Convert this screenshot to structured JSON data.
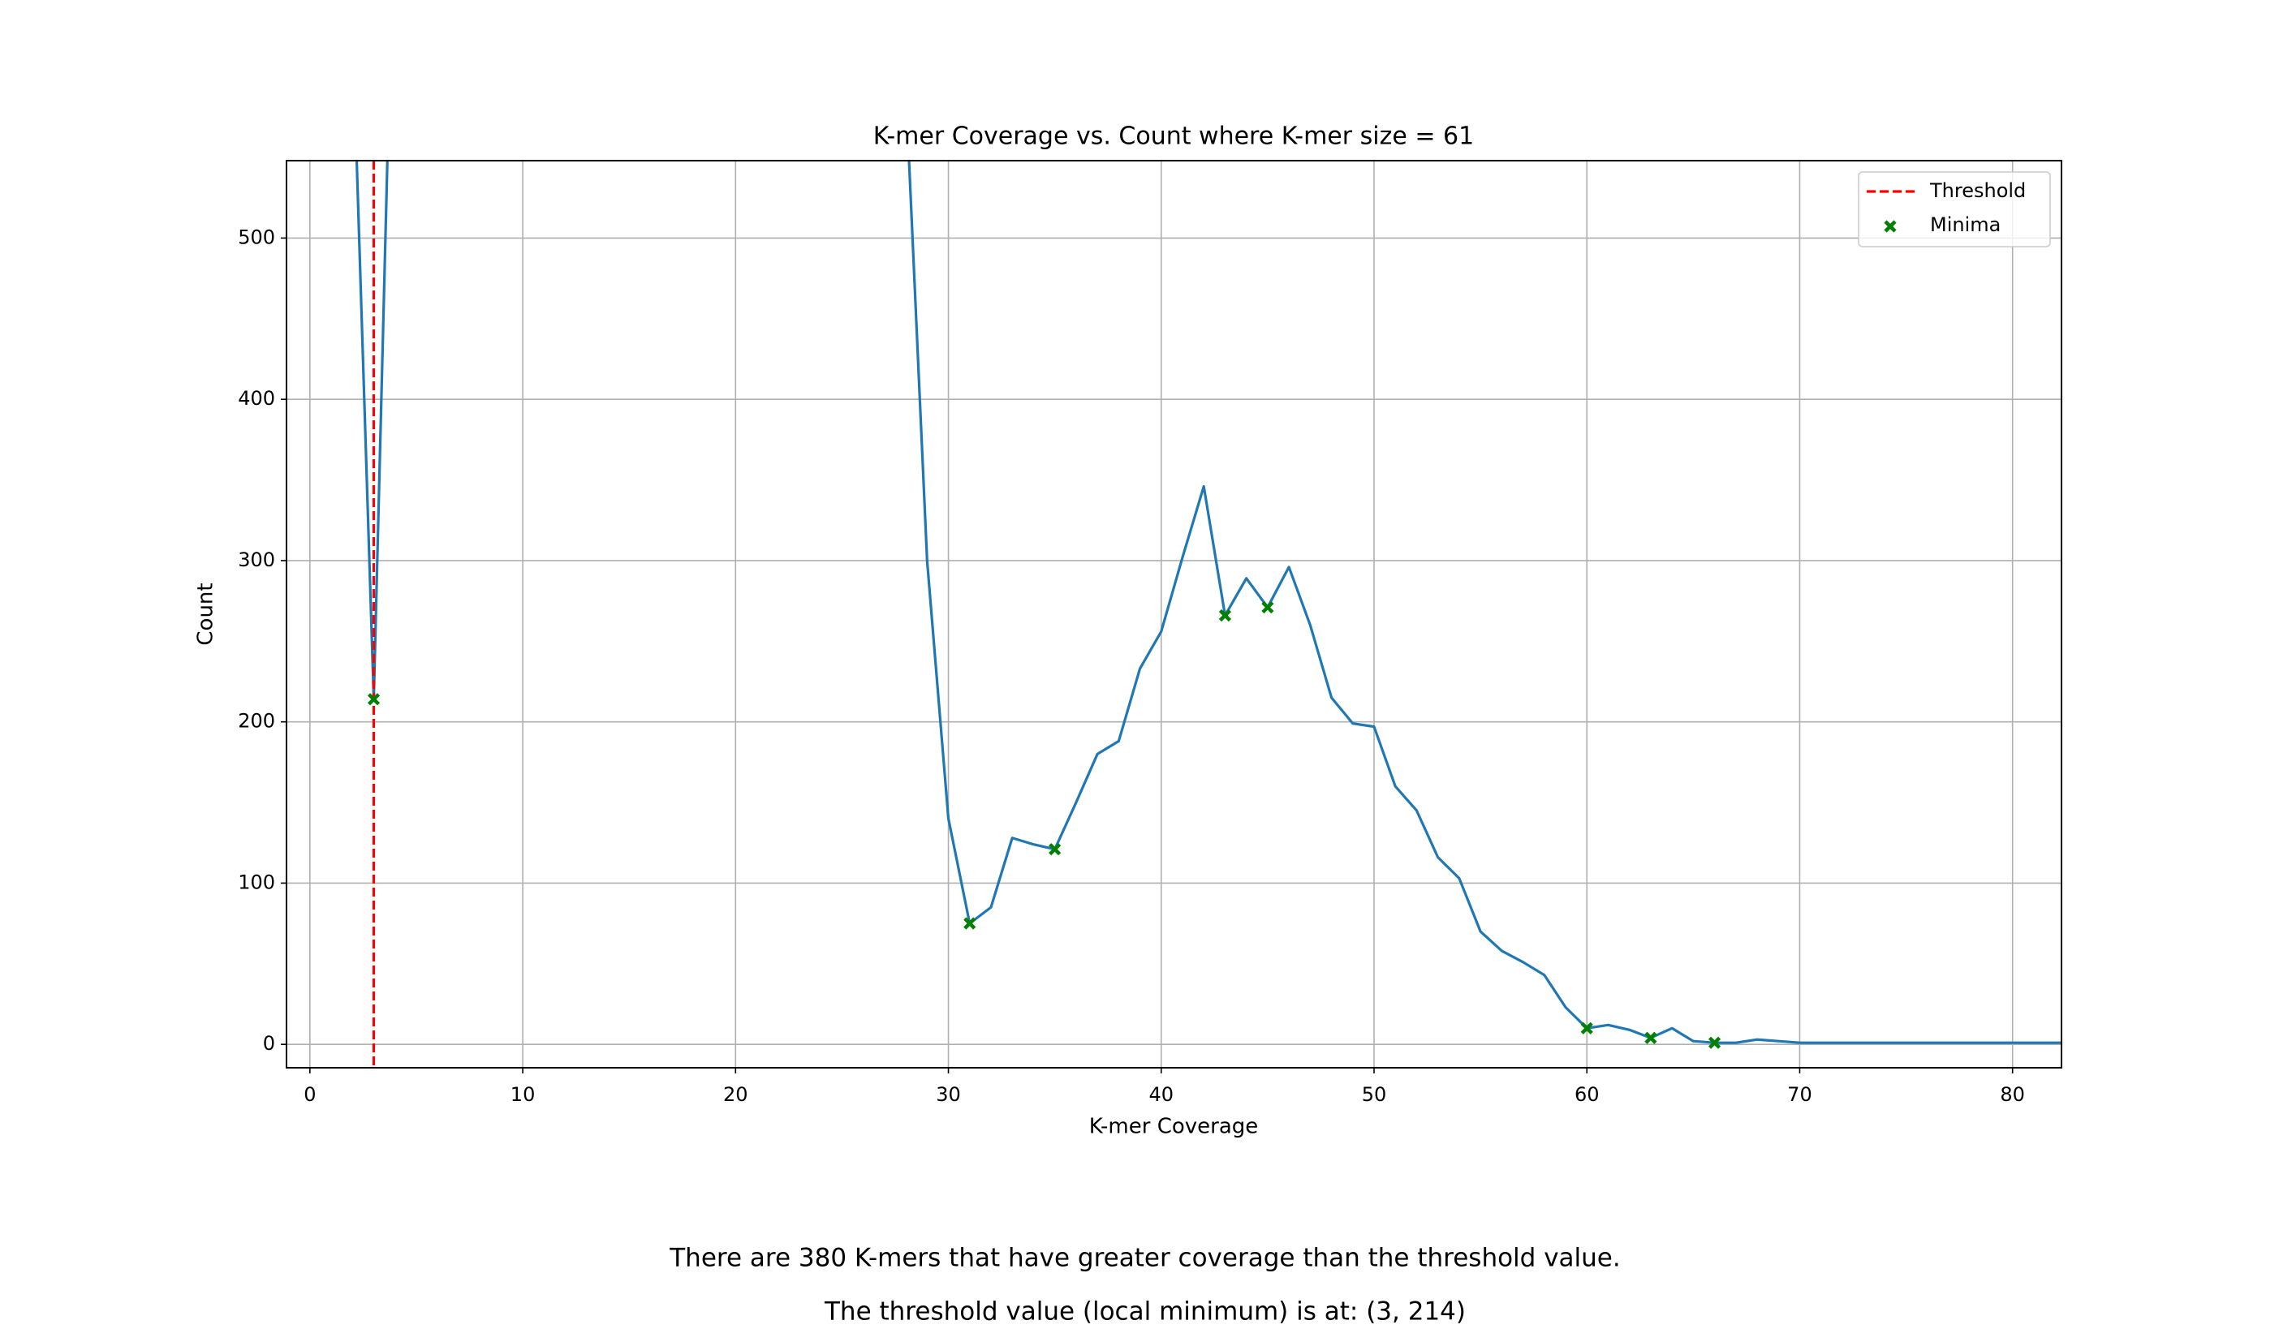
{
  "chart_data": {
    "type": "line",
    "title": "K-mer Coverage vs. Count where K-mer size = 61",
    "xlabel": "K-mer Coverage",
    "ylabel": "Count",
    "x": [
      2,
      3,
      4,
      5,
      6,
      7,
      8,
      9,
      10,
      11,
      12,
      13,
      14,
      15,
      16,
      17,
      18,
      19,
      20,
      21,
      22,
      23,
      24,
      25,
      26,
      27,
      28,
      29,
      30,
      31,
      32,
      33,
      34,
      35,
      36,
      37,
      38,
      39,
      40,
      41,
      42,
      43,
      44,
      45,
      46,
      47,
      48,
      49,
      50,
      51,
      52,
      53,
      54,
      55,
      56,
      57,
      58,
      59,
      60,
      61,
      62,
      63,
      64,
      65,
      66,
      67,
      68,
      69,
      70,
      71,
      72,
      73,
      74,
      75,
      76,
      77,
      78,
      79,
      80,
      81,
      82,
      83
    ],
    "series": [
      {
        "color": "#1f77b4",
        "values": [
          631,
          214,
          736,
          null,
          null,
          null,
          null,
          null,
          null,
          null,
          null,
          null,
          null,
          null,
          null,
          null,
          null,
          null,
          null,
          null,
          null,
          null,
          null,
          null,
          null,
          null,
          592,
          300,
          140,
          75,
          85,
          128,
          124,
          121,
          150,
          180,
          188,
          233,
          256,
          302,
          346,
          266,
          289,
          271,
          296,
          260,
          215,
          199,
          197,
          160,
          145,
          116,
          103,
          70,
          58,
          51,
          43,
          23,
          10,
          12,
          9,
          4,
          10,
          2,
          1,
          1,
          3,
          2,
          1,
          1,
          1,
          1,
          1,
          1,
          1,
          1,
          1,
          1,
          1,
          1,
          1,
          1
        ]
      }
    ],
    "threshold": {
      "name": "Threshold",
      "color": "#ff0000",
      "x": 3
    },
    "minima": {
      "name": "Minima",
      "color": "#008000",
      "x": [
        3,
        31,
        35,
        43,
        45,
        60,
        63,
        66
      ],
      "values": [
        214,
        75,
        121,
        266,
        271,
        10,
        4,
        1
      ]
    },
    "xlim": [
      -1.1,
      82.3
    ],
    "ylim": [
      -14.5,
      548
    ],
    "xticks": [
      0,
      10,
      20,
      30,
      40,
      50,
      60,
      70,
      80
    ],
    "yticks": [
      0,
      100,
      200,
      300,
      400,
      500
    ],
    "grid": true,
    "legend": "upper right"
  },
  "footer_lines": [
    "There are 380 K-mers that have greater coverage than the threshold value.",
    "The threshold value (local minimum) is at: (3, 214)"
  ]
}
